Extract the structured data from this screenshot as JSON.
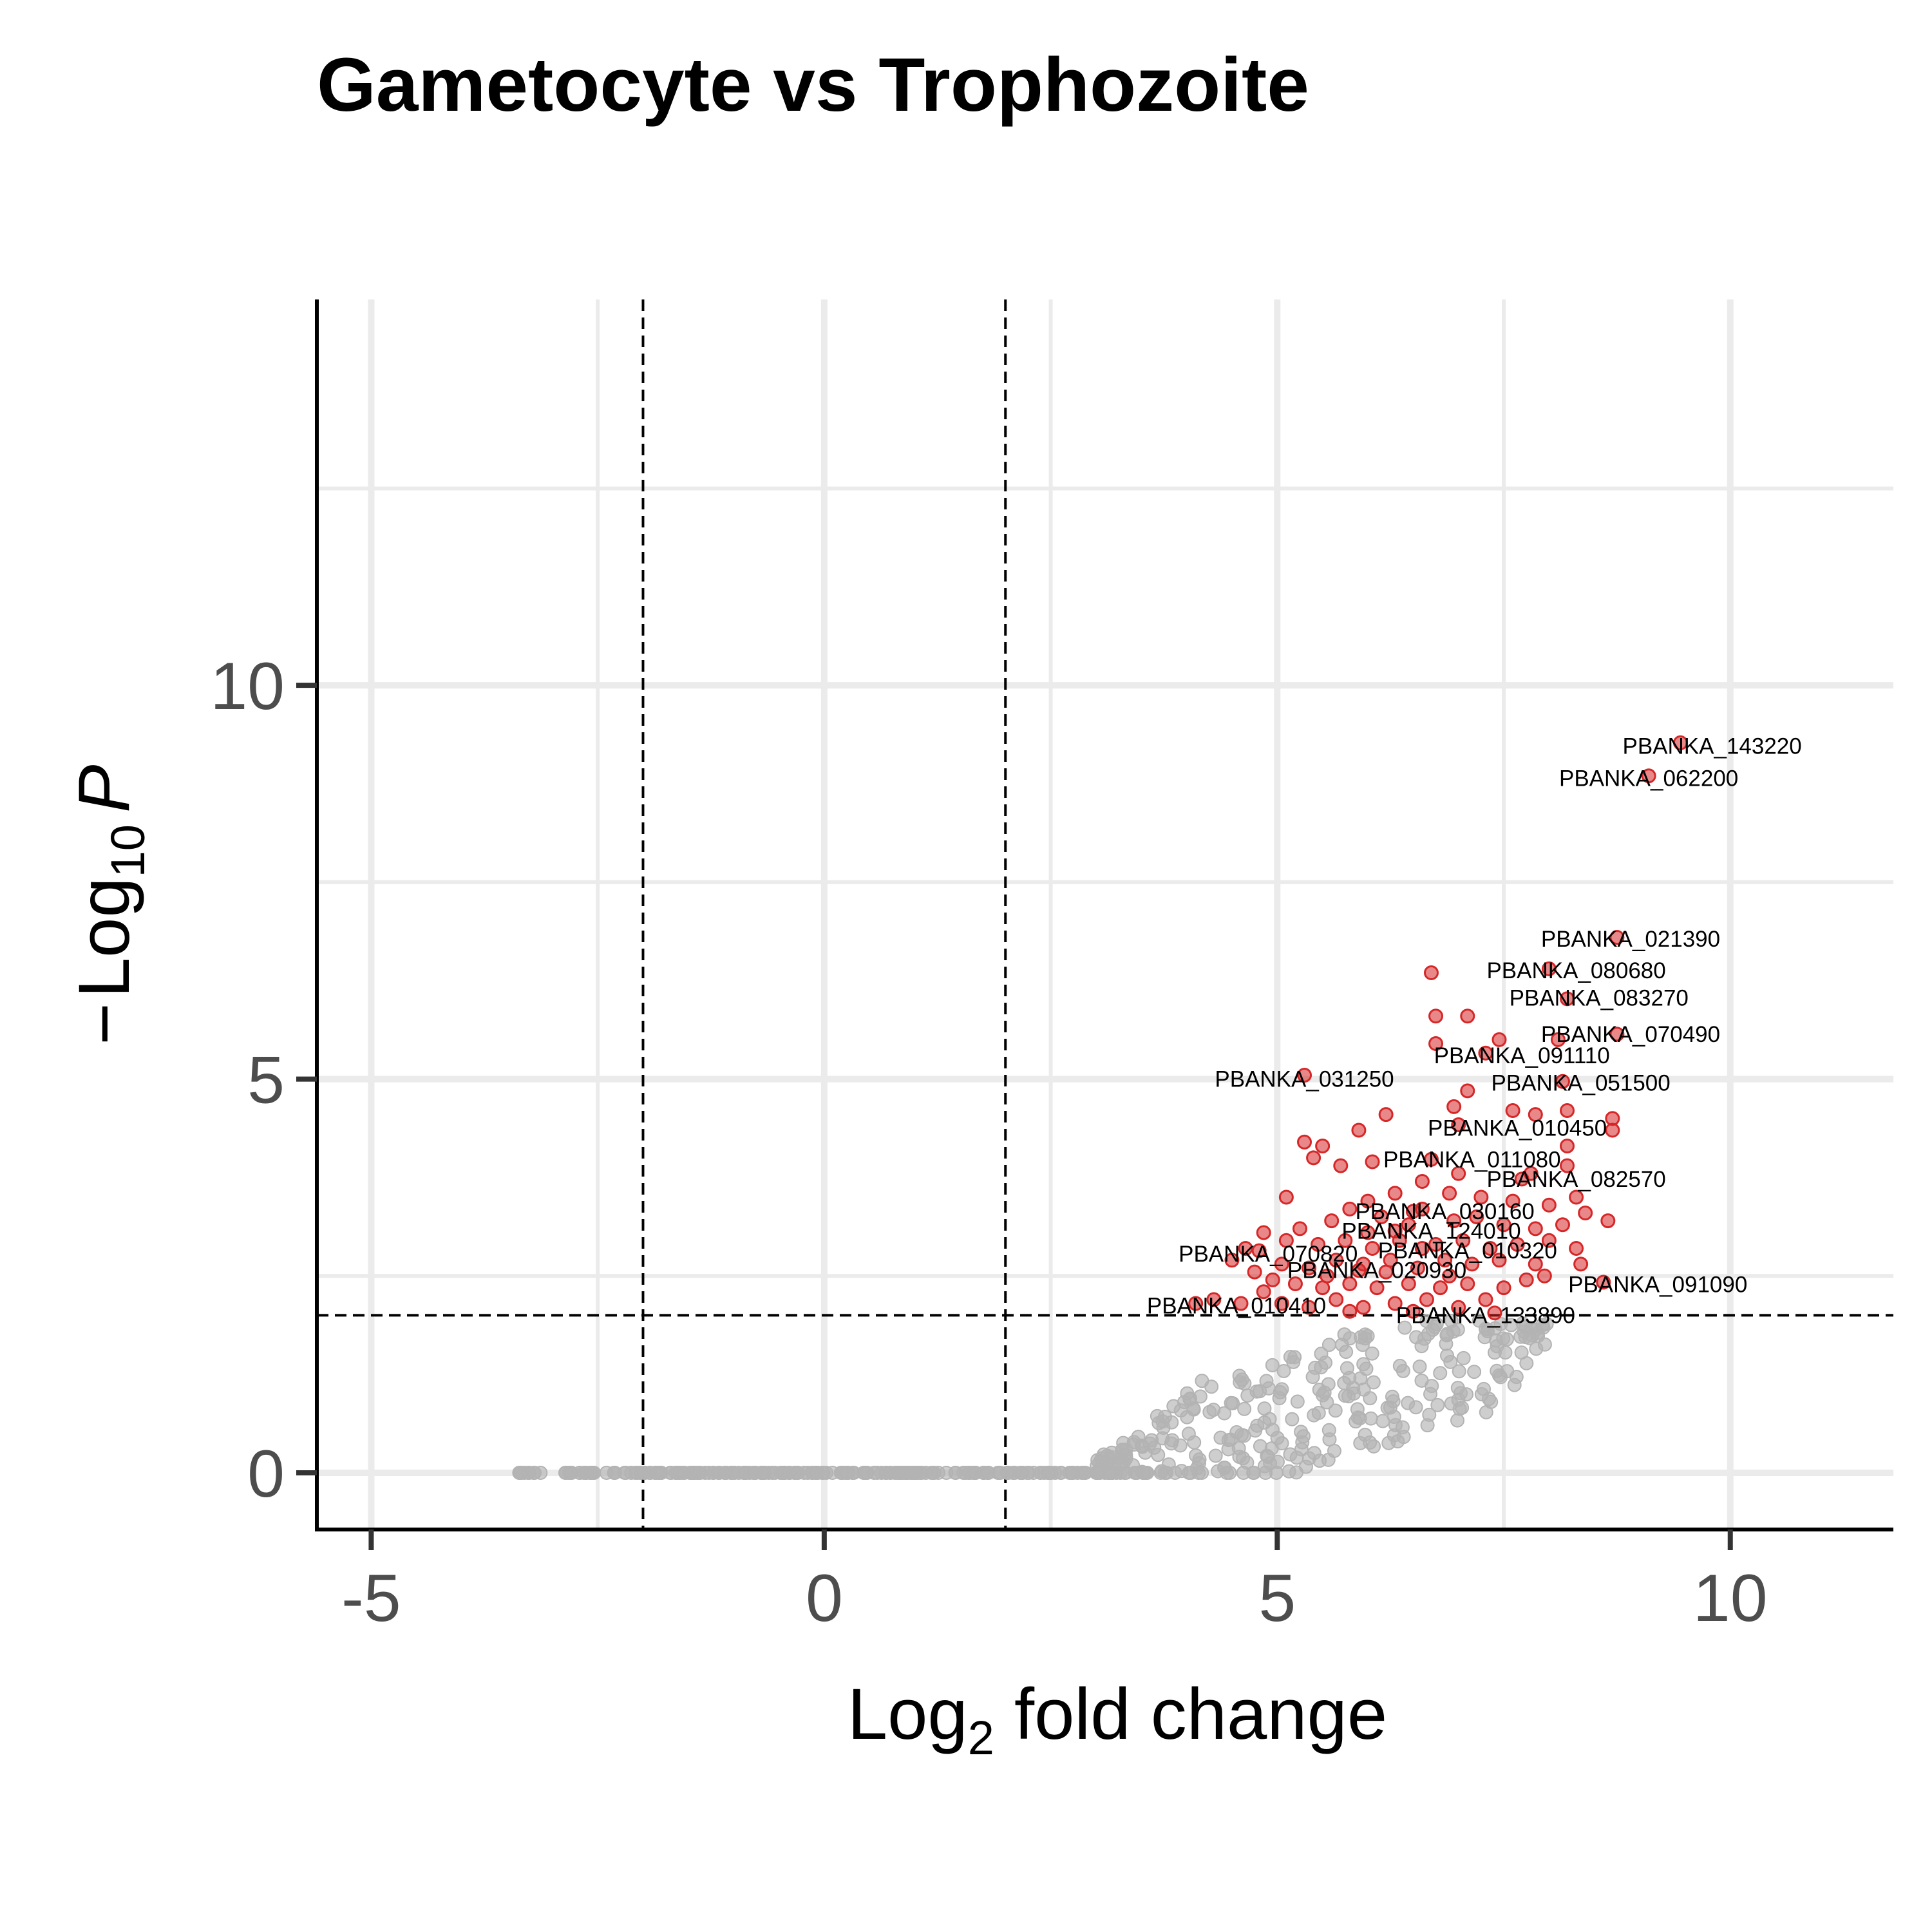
{
  "chart_data": {
    "type": "scatter",
    "title": "Gametocyte vs Trophozoite",
    "xlabel": {
      "main": "Log",
      "sub": "2",
      "rest": " fold change"
    },
    "ylabel": {
      "minus": "−",
      "main": "Log",
      "sub": "10",
      "italic": "P"
    },
    "xlim": [
      -5.6,
      11.8
    ],
    "ylim": [
      -0.72,
      14.9
    ],
    "x_ticks": [
      -5,
      0,
      5,
      10
    ],
    "x_tick_labels": [
      "-5",
      "0",
      "5",
      "10"
    ],
    "y_ticks": [
      0,
      5,
      10
    ],
    "y_tick_labels": [
      "0",
      "5",
      "10"
    ],
    "grid": true,
    "cutoffs": {
      "fold_change": [
        -2,
        2
      ],
      "neg_log10_p": 2
    },
    "colors": {
      "significant": "#d62728",
      "not_significant": "#b3b3b3",
      "grid": "#ebebeb",
      "cutoff_line": "#000000"
    },
    "labeled_genes": [
      {
        "name": "PBANKA_143220",
        "x": 9.45,
        "y": 9.27
      },
      {
        "name": "PBANKA_062200",
        "x": 9.1,
        "y": 8.85
      },
      {
        "name": "PBANKA_021390",
        "x": 8.75,
        "y": 6.8
      },
      {
        "name": "PBANKA_080680",
        "x": 8.0,
        "y": 6.4
      },
      {
        "name": "PBANKA_083270",
        "x": 8.2,
        "y": 6.02
      },
      {
        "name": "PBANKA_070490",
        "x": 8.75,
        "y": 5.57
      },
      {
        "name": "PBANKA_091110",
        "x": 7.3,
        "y": 5.33
      },
      {
        "name": "PBANKA_031250",
        "x": 5.3,
        "y": 5.05
      },
      {
        "name": "PBANKA_051500",
        "x": 8.15,
        "y": 4.97
      },
      {
        "name": "PBANKA_010450",
        "x": 7.0,
        "y": 4.42
      },
      {
        "name": "PBANKA_011080",
        "x": 6.7,
        "y": 3.98
      },
      {
        "name": "PBANKA_082570",
        "x": 7.7,
        "y": 3.73
      },
      {
        "name": "PBANKA_030160",
        "x": 6.5,
        "y": 3.32
      },
      {
        "name": "PBANKA_124010",
        "x": 6.3,
        "y": 3.07
      },
      {
        "name": "PBANKA_070820",
        "x": 4.8,
        "y": 2.82
      },
      {
        "name": "PBANKA_010320",
        "x": 6.6,
        "y": 2.85
      },
      {
        "name": "PBANKA_020930",
        "x": 5.9,
        "y": 2.57
      },
      {
        "name": "PBANKA_091090",
        "x": 8.6,
        "y": 2.42
      },
      {
        "name": "PBANKA_010410",
        "x": 4.6,
        "y": 2.15
      },
      {
        "name": "PBANKA_133890",
        "x": 7.4,
        "y": 2.03
      }
    ],
    "label_text_positions": [
      {
        "x": 9.8,
        "y": 9.23
      },
      {
        "x": 9.1,
        "y": 8.82
      },
      {
        "x": 8.9,
        "y": 6.78
      },
      {
        "x": 8.3,
        "y": 6.38
      },
      {
        "x": 8.55,
        "y": 6.03
      },
      {
        "x": 8.9,
        "y": 5.57
      },
      {
        "x": 7.7,
        "y": 5.3
      },
      {
        "x": 5.3,
        "y": 5.0
      },
      {
        "x": 8.35,
        "y": 4.95
      },
      {
        "x": 7.65,
        "y": 4.38
      },
      {
        "x": 7.15,
        "y": 3.98
      },
      {
        "x": 8.3,
        "y": 3.73
      },
      {
        "x": 6.85,
        "y": 3.32
      },
      {
        "x": 6.7,
        "y": 3.07
      },
      {
        "x": 4.9,
        "y": 2.78
      },
      {
        "x": 7.1,
        "y": 2.82
      },
      {
        "x": 6.1,
        "y": 2.57
      },
      {
        "x": 9.2,
        "y": 2.39
      },
      {
        "x": 4.55,
        "y": 2.12
      },
      {
        "x": 7.3,
        "y": 2.0
      }
    ],
    "extra_significant_points": [
      [
        6.7,
        6.35
      ],
      [
        6.75,
        5.8
      ],
      [
        6.75,
        5.45
      ],
      [
        7.1,
        5.8
      ],
      [
        7.45,
        5.5
      ],
      [
        8.1,
        5.5
      ],
      [
        8.7,
        4.5
      ],
      [
        8.7,
        4.35
      ],
      [
        7.1,
        4.85
      ],
      [
        6.95,
        4.65
      ],
      [
        7.6,
        4.6
      ],
      [
        7.85,
        4.55
      ],
      [
        8.2,
        4.6
      ],
      [
        6.2,
        4.55
      ],
      [
        5.9,
        4.35
      ],
      [
        5.3,
        4.2
      ],
      [
        5.5,
        4.15
      ],
      [
        5.4,
        4.0
      ],
      [
        5.7,
        3.9
      ],
      [
        6.05,
        3.95
      ],
      [
        8.2,
        4.15
      ],
      [
        7.8,
        3.8
      ],
      [
        8.2,
        3.9
      ],
      [
        7.0,
        3.8
      ],
      [
        6.6,
        3.7
      ],
      [
        6.3,
        3.55
      ],
      [
        5.1,
        3.5
      ],
      [
        5.8,
        3.35
      ],
      [
        6.0,
        3.45
      ],
      [
        6.9,
        3.55
      ],
      [
        7.25,
        3.5
      ],
      [
        7.6,
        3.45
      ],
      [
        8.0,
        3.4
      ],
      [
        8.3,
        3.5
      ],
      [
        8.4,
        3.3
      ],
      [
        8.65,
        3.2
      ],
      [
        8.15,
        3.15
      ],
      [
        7.85,
        3.1
      ],
      [
        7.5,
        3.15
      ],
      [
        7.2,
        3.25
      ],
      [
        6.95,
        3.2
      ],
      [
        6.45,
        3.15
      ],
      [
        6.15,
        3.25
      ],
      [
        5.6,
        3.2
      ],
      [
        5.25,
        3.1
      ],
      [
        4.85,
        3.05
      ],
      [
        5.1,
        2.95
      ],
      [
        5.45,
        2.9
      ],
      [
        5.75,
        2.95
      ],
      [
        6.05,
        2.85
      ],
      [
        6.35,
        2.95
      ],
      [
        6.75,
        2.9
      ],
      [
        7.05,
        2.95
      ],
      [
        7.35,
        2.85
      ],
      [
        7.65,
        2.9
      ],
      [
        8.0,
        2.95
      ],
      [
        8.3,
        2.85
      ],
      [
        8.35,
        2.65
      ],
      [
        7.85,
        2.65
      ],
      [
        7.45,
        2.7
      ],
      [
        7.15,
        2.65
      ],
      [
        6.85,
        2.7
      ],
      [
        6.55,
        2.6
      ],
      [
        6.25,
        2.7
      ],
      [
        5.95,
        2.65
      ],
      [
        5.65,
        2.7
      ],
      [
        5.35,
        2.6
      ],
      [
        5.05,
        2.65
      ],
      [
        4.75,
        2.55
      ],
      [
        4.5,
        2.7
      ],
      [
        4.65,
        2.85
      ],
      [
        5.2,
        2.4
      ],
      [
        5.5,
        2.35
      ],
      [
        5.8,
        2.4
      ],
      [
        6.1,
        2.35
      ],
      [
        6.45,
        2.4
      ],
      [
        6.8,
        2.35
      ],
      [
        7.1,
        2.4
      ],
      [
        7.5,
        2.35
      ],
      [
        7.95,
        2.5
      ],
      [
        4.3,
        2.2
      ],
      [
        4.85,
        2.3
      ],
      [
        5.05,
        2.15
      ],
      [
        5.35,
        2.1
      ],
      [
        5.65,
        2.2
      ],
      [
        5.95,
        2.1
      ],
      [
        6.3,
        2.15
      ],
      [
        6.65,
        2.2
      ],
      [
        7.0,
        2.1
      ],
      [
        7.3,
        2.2
      ],
      [
        4.1,
        2.15
      ],
      [
        5.8,
        2.05
      ],
      [
        6.5,
        2.05
      ],
      [
        6.9,
        2.5
      ],
      [
        6.0,
        3.05
      ],
      [
        6.6,
        3.35
      ],
      [
        7.75,
        2.45
      ],
      [
        5.55,
        2.5
      ],
      [
        4.95,
        2.45
      ],
      [
        6.2,
        2.55
      ]
    ],
    "background_points": {
      "count": 560,
      "description": "Non-significant genes: a dense band at -log10 P = 0 from about x = -3.4 to 3, and a rising gray cloud between x = 3 and 8 below the P cutoff"
    }
  }
}
